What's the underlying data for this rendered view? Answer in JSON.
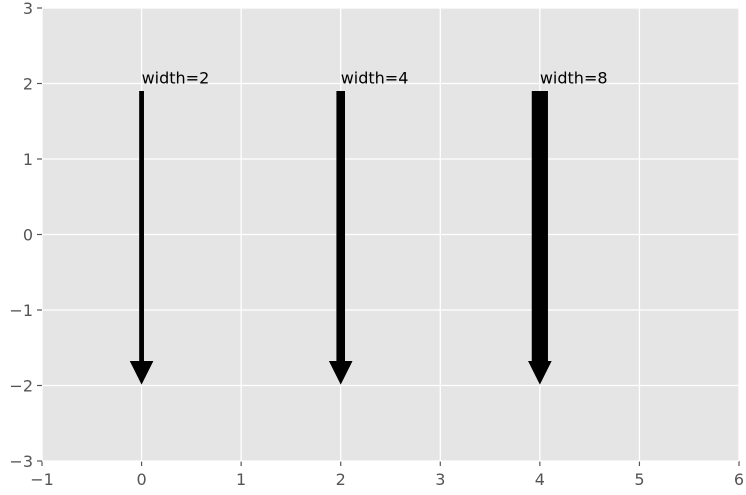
{
  "chart_data": {
    "type": "arrow",
    "arrows": [
      {
        "x": 0,
        "y_start": 2,
        "y_end": -2,
        "width": 2,
        "label": "width=2"
      },
      {
        "x": 2,
        "y_start": 2,
        "y_end": -2,
        "width": 4,
        "label": "width=4"
      },
      {
        "x": 4,
        "y_start": 2,
        "y_end": -2,
        "width": 8,
        "label": "width=8"
      }
    ],
    "color": "#000000",
    "xlim": [
      -1,
      6
    ],
    "ylim": [
      -3,
      3
    ],
    "xticks": [
      {
        "value": -1,
        "label": "−1"
      },
      0,
      1,
      2,
      3,
      4,
      5,
      6
    ],
    "yticks": [
      {
        "value": -3,
        "label": "−3"
      },
      {
        "value": -2,
        "label": "−2"
      },
      {
        "value": -1,
        "label": "−1"
      },
      0,
      1,
      2,
      3
    ],
    "grid": true
  }
}
